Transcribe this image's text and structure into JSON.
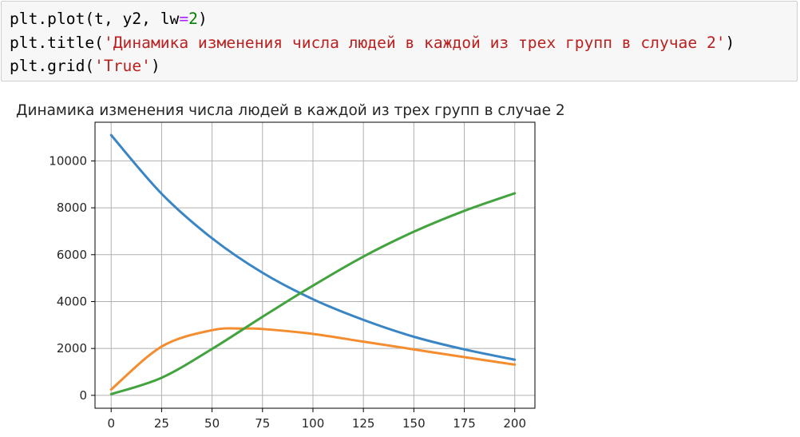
{
  "code": {
    "line1": {
      "a": "plt.plot(t, y2, lw",
      "eq": "=",
      "num": "2",
      "b": ")"
    },
    "line2": {
      "a": "plt.title(",
      "str": "'Динамика изменения числа людей в каждой из трех групп в случае 2'",
      "b": ")"
    },
    "line3": {
      "a": "plt.grid(",
      "str": "'True'",
      "b": ")"
    }
  },
  "chart_data": {
    "type": "line",
    "title": "Динамика изменения числа людей в каждой из трех групп в случае 2",
    "xlabel": "",
    "ylabel": "",
    "xlim": [
      -8,
      210
    ],
    "ylim": [
      -550,
      11650
    ],
    "xticks": [
      0,
      25,
      50,
      75,
      100,
      125,
      150,
      175,
      200
    ],
    "yticks": [
      0,
      2000,
      4000,
      6000,
      8000,
      10000
    ],
    "grid": true,
    "series": [
      {
        "color": "#3a85c4",
        "x": [
          0,
          25,
          50,
          75,
          100,
          125,
          150,
          175,
          200
        ],
        "y": [
          11100,
          8600,
          6700,
          5230,
          4100,
          3220,
          2500,
          1960,
          1520
        ]
      },
      {
        "color": "#f48d2f",
        "x": [
          0,
          25,
          50,
          65,
          75,
          100,
          125,
          150,
          175,
          200
        ],
        "y": [
          250,
          2080,
          2780,
          2850,
          2830,
          2620,
          2290,
          1960,
          1630,
          1310
        ]
      },
      {
        "color": "#42a33f",
        "x": [
          0,
          25,
          50,
          75,
          100,
          125,
          150,
          175,
          200
        ],
        "y": [
          50,
          750,
          1980,
          3350,
          4680,
          5920,
          6980,
          7870,
          8620
        ]
      }
    ]
  }
}
